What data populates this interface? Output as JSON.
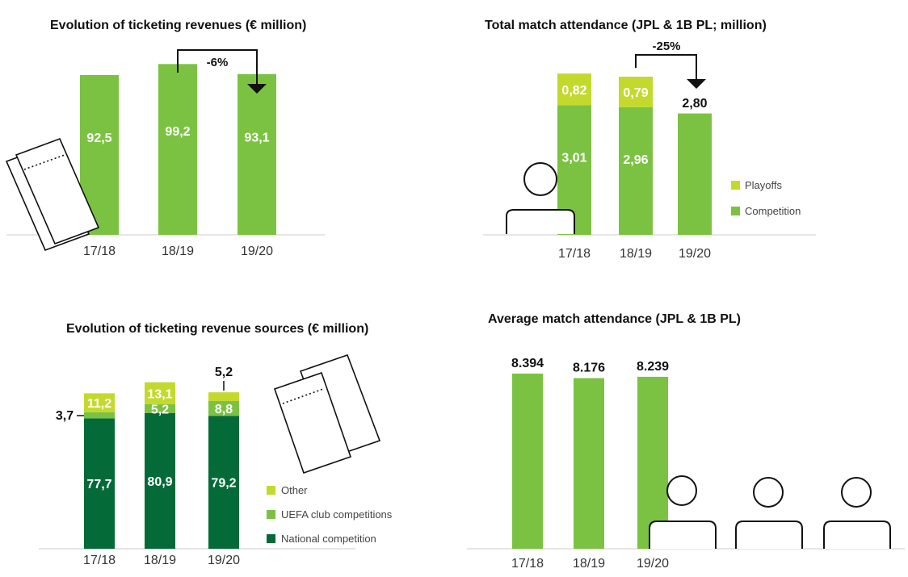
{
  "colors": {
    "competition_green": "#7CC242",
    "playoffs_lime": "#C3D92E",
    "national_dark": "#046A38",
    "uefa_green": "#7CC242",
    "other_lime": "#C3D92E",
    "baseline": "#cccccc"
  },
  "icons": [
    "ticket-icon",
    "person-icon"
  ],
  "chart_data": [
    {
      "id": "revenues",
      "type": "bar",
      "title": "Evolution of ticketing revenues (€ million)",
      "categories": [
        "17/18",
        "18/19",
        "19/20"
      ],
      "values": [
        92.5,
        99.2,
        93.1
      ],
      "value_labels": [
        "92,5",
        "99,2",
        "93,1"
      ],
      "annotation": {
        "text": "-6%",
        "from": "18/19",
        "to": "19/20"
      },
      "ylim": [
        0,
        100
      ]
    },
    {
      "id": "total_attendance",
      "type": "bar",
      "stacked": true,
      "title": "Total match attendance (JPL & 1B PL; million)",
      "categories": [
        "17/18",
        "18/19",
        "19/20"
      ],
      "series": [
        {
          "name": "Competition",
          "values": [
            3.01,
            2.96,
            2.8
          ],
          "labels": [
            "3,01",
            "2,96",
            "2,80"
          ]
        },
        {
          "name": "Playoffs",
          "values": [
            0.82,
            0.79,
            0
          ],
          "labels": [
            "0,82",
            "0,79",
            ""
          ]
        }
      ],
      "legend": [
        "Playoffs",
        "Competition"
      ],
      "legend_position": "right",
      "annotation": {
        "text": "-25%",
        "from": "18/19",
        "to": "19/20"
      },
      "ylim": [
        0,
        4.0
      ]
    },
    {
      "id": "revenue_sources",
      "type": "bar",
      "stacked": true,
      "title": "Evolution of ticketing revenue sources (€ million)",
      "categories": [
        "17/18",
        "18/19",
        "19/20"
      ],
      "series": [
        {
          "name": "National competition",
          "values": [
            77.7,
            80.9,
            79.2
          ],
          "labels": [
            "77,7",
            "80,9",
            "79,2"
          ]
        },
        {
          "name": "UEFA club competitions",
          "values": [
            3.7,
            5.2,
            8.8
          ],
          "labels": [
            "3,7",
            "5,2",
            "8,8"
          ]
        },
        {
          "name": "Other",
          "values": [
            11.2,
            13.1,
            5.2
          ],
          "labels": [
            "11,2",
            "13,1",
            "5,2"
          ]
        }
      ],
      "legend": [
        "Other",
        "UEFA club competitions",
        "National competition"
      ],
      "legend_position": "right",
      "ylim": [
        0,
        100
      ]
    },
    {
      "id": "average_attendance",
      "type": "bar",
      "title": "Average match attendance (JPL & 1B PL)",
      "categories": [
        "17/18",
        "18/19",
        "19/20"
      ],
      "values": [
        8394,
        8176,
        8239
      ],
      "value_labels": [
        "8.394",
        "8.176",
        "8.239"
      ],
      "ylim": [
        0,
        8700
      ]
    }
  ]
}
